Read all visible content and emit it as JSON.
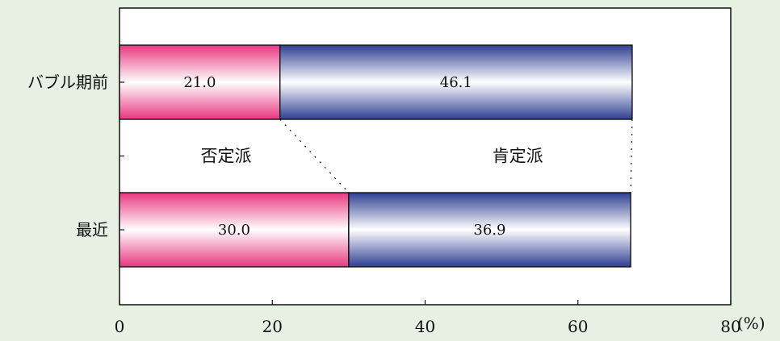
{
  "chart_data": {
    "type": "bar",
    "orientation": "horizontal",
    "stacked": true,
    "categories": [
      "バブル期前",
      "最近"
    ],
    "series": [
      {
        "name": "否定派",
        "values": [
          21.0,
          30.0
        ],
        "color": "#e8377f"
      },
      {
        "name": "肯定派",
        "values": [
          46.1,
          36.9
        ],
        "color": "#2f3f92"
      }
    ],
    "xlim": [
      0,
      80
    ],
    "x_ticks": [
      0,
      20,
      40,
      60,
      80
    ],
    "x_unit": "(%)",
    "title": "",
    "xlabel": "",
    "ylabel": "",
    "grid": false,
    "legend": "none"
  }
}
